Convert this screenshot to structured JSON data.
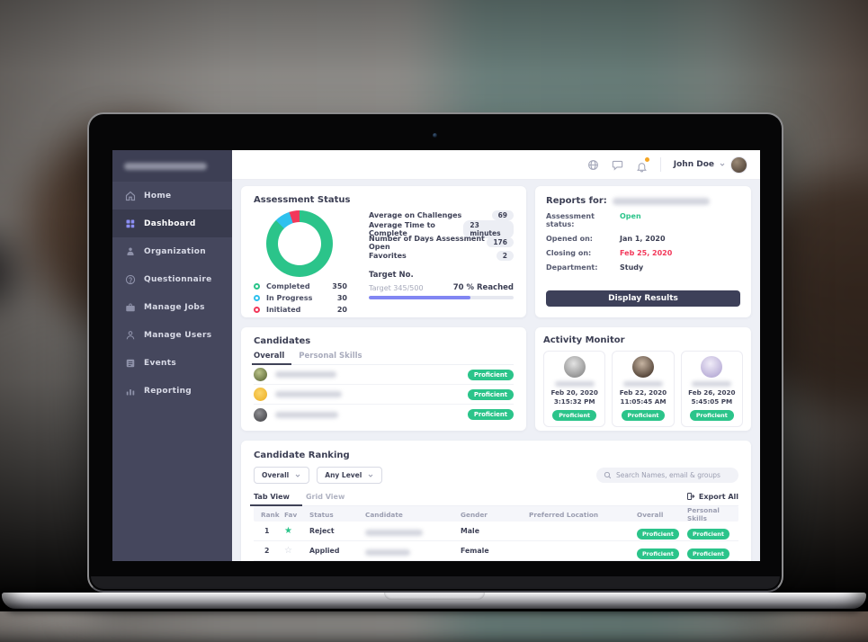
{
  "colors": {
    "green": "#2bc48a",
    "blue": "#2fc1ee",
    "red": "#f2385a",
    "purple": "#8186f3",
    "navy": "#3d4059",
    "notification_dot": "#f5a623"
  },
  "topbar": {
    "user_name": "John Doe"
  },
  "sidebar": {
    "items": [
      {
        "label": "Home",
        "active": false
      },
      {
        "label": "Dashboard",
        "active": true
      },
      {
        "label": "Organization",
        "active": false
      },
      {
        "label": "Questionnaire",
        "active": false
      },
      {
        "label": "Manage Jobs",
        "active": false
      },
      {
        "label": "Manage Users",
        "active": false
      },
      {
        "label": "Events",
        "active": false
      },
      {
        "label": "Reporting",
        "active": false
      }
    ]
  },
  "assessment_status": {
    "title": "Assessment Status",
    "chart_data": {
      "type": "pie",
      "donut": true,
      "labels": [
        "Completed",
        "In Progress",
        "Initiated"
      ],
      "values": [
        350,
        30,
        20
      ],
      "colors": [
        "#2bc48a",
        "#2fc1ee",
        "#f2385a"
      ],
      "legend_position": "bottom-left"
    },
    "legend": [
      {
        "label": "Completed",
        "value": "350"
      },
      {
        "label": "In Progress",
        "value": "30"
      },
      {
        "label": "Initiated",
        "value": "20"
      }
    ],
    "stats": [
      {
        "label": "Average on Challenges",
        "value": "69"
      },
      {
        "label": "Average Time to Complete",
        "value": "23 minutes"
      },
      {
        "label": "Number of Days Assessment Open",
        "value": "176"
      },
      {
        "label": "Favorites",
        "value": "2"
      }
    ],
    "target": {
      "heading": "Target No.",
      "label": "Target 345/500",
      "reached": "70 % Reached",
      "percent": 70
    }
  },
  "reports": {
    "title": "Reports for:",
    "fields": [
      {
        "label": "Assessment status:",
        "value": "Open"
      },
      {
        "label": "Opened on:",
        "value": "Jan 1, 2020"
      },
      {
        "label": "Closing on:",
        "value": "Feb 25, 2020"
      },
      {
        "label": "Department:",
        "value": "Study"
      }
    ],
    "button_label": "Display Results"
  },
  "candidates": {
    "title": "Candidates",
    "tabs": [
      {
        "label": "Overall",
        "active": true
      },
      {
        "label": "Personal Skills",
        "active": false
      }
    ],
    "rows": [
      {
        "badge": "Proficient"
      },
      {
        "badge": "Proficient"
      },
      {
        "badge": "Proficient"
      }
    ]
  },
  "activity_monitor": {
    "title": "Activity Monitor",
    "cards": [
      {
        "date": "Feb 20, 2020",
        "time": "3:15:32 PM",
        "badge": "Proficient"
      },
      {
        "date": "Feb 22, 2020",
        "time": "11:05:45 AM",
        "badge": "Proficient"
      },
      {
        "date": "Feb 26, 2020",
        "time": "5:45:05 PM",
        "badge": "Proficient"
      }
    ]
  },
  "candidate_ranking": {
    "title": "Candidate Ranking",
    "filters": [
      {
        "value": "Overall"
      },
      {
        "value": "Any Level"
      }
    ],
    "search_placeholder": "Search Names, email & groups",
    "view_tabs": [
      {
        "label": "Tab View",
        "active": true
      },
      {
        "label": "Grid View",
        "active": false
      }
    ],
    "export_label": "Export All",
    "columns": [
      "Rank",
      "Fav",
      "Status",
      "Candidate",
      "Gender",
      "Preferred Location",
      "Overall",
      "Personal Skills"
    ],
    "rows": [
      {
        "rank": "1",
        "favorite": true,
        "status": "Reject",
        "gender": "Male",
        "preferred_location": "",
        "overall": "Proficient",
        "personal_skills": "Proficient"
      },
      {
        "rank": "2",
        "favorite": false,
        "status": "Applied",
        "gender": "Female",
        "preferred_location": "",
        "overall": "Proficient",
        "personal_skills": "Proficient"
      }
    ]
  }
}
